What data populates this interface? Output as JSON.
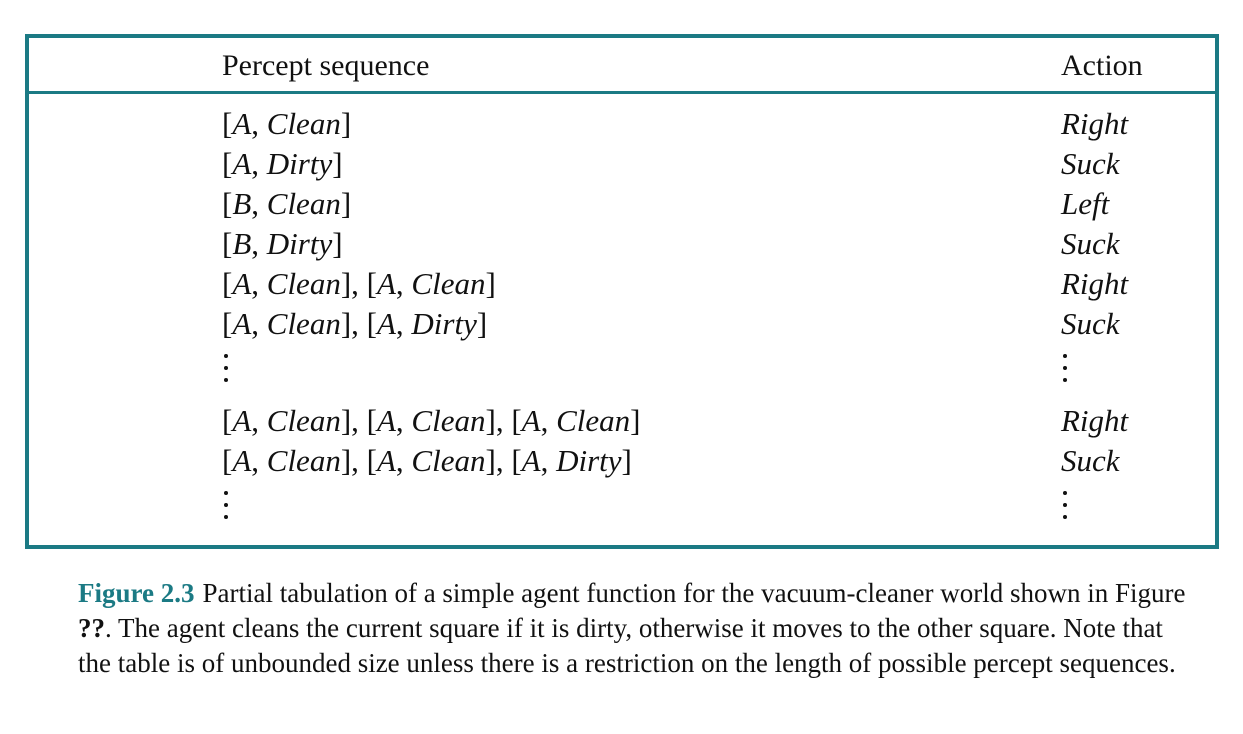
{
  "table": {
    "header": {
      "percept": "Percept sequence",
      "action": "Action"
    },
    "rows": [
      {
        "type": "entry",
        "percept": [
          [
            "A",
            "Clean"
          ]
        ],
        "action": "Right"
      },
      {
        "type": "entry",
        "percept": [
          [
            "A",
            "Dirty"
          ]
        ],
        "action": "Suck"
      },
      {
        "type": "entry",
        "percept": [
          [
            "B",
            "Clean"
          ]
        ],
        "action": "Left"
      },
      {
        "type": "entry",
        "percept": [
          [
            "B",
            "Dirty"
          ]
        ],
        "action": "Suck"
      },
      {
        "type": "entry",
        "percept": [
          [
            "A",
            "Clean"
          ],
          [
            "A",
            "Clean"
          ]
        ],
        "action": "Right"
      },
      {
        "type": "entry",
        "percept": [
          [
            "A",
            "Clean"
          ],
          [
            "A",
            "Dirty"
          ]
        ],
        "action": "Suck"
      },
      {
        "type": "ellipsis"
      },
      {
        "type": "entry",
        "percept": [
          [
            "A",
            "Clean"
          ],
          [
            "A",
            "Clean"
          ],
          [
            "A",
            "Clean"
          ]
        ],
        "action": "Right"
      },
      {
        "type": "entry",
        "percept": [
          [
            "A",
            "Clean"
          ],
          [
            "A",
            "Clean"
          ],
          [
            "A",
            "Dirty"
          ]
        ],
        "action": "Suck"
      },
      {
        "type": "ellipsis"
      }
    ]
  },
  "caption": {
    "label": "Figure 2.3",
    "text_before_ref": "Partial tabulation of a simple agent function for the vacuum-cleaner world shown in Figure ",
    "ref": "??",
    "text_after_ref": ". The agent cleans the current square if it is dirty, otherwise it moves to the other square. Note that the table is of unbounded size unless there is a restriction on the length of possible percept sequences."
  },
  "colors": {
    "accent": "#1b7a84",
    "text": "#111111"
  }
}
